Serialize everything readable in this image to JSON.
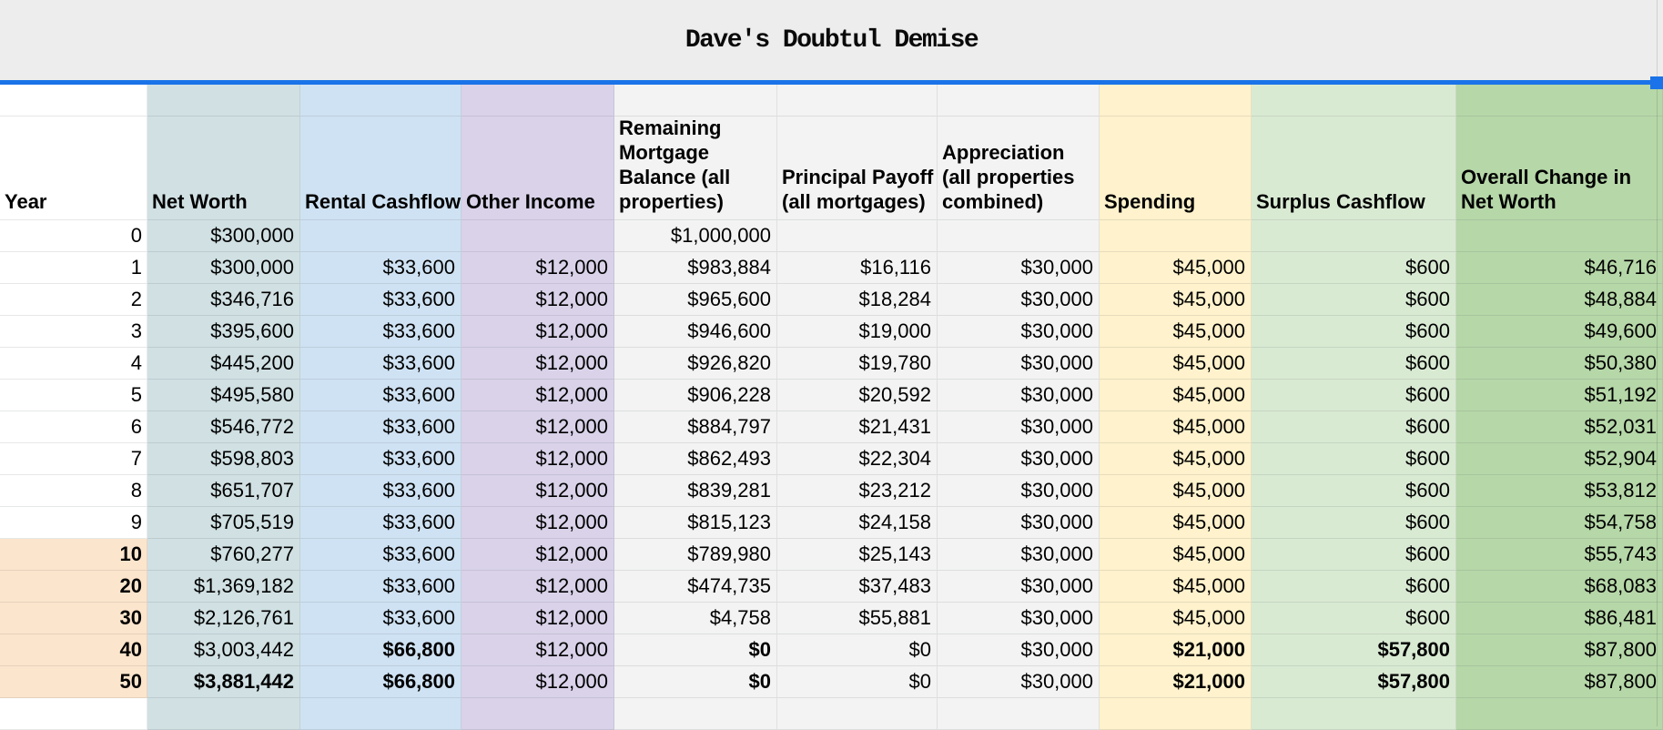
{
  "title": "Dave's Doubtul Demise",
  "colors": {
    "title_bar_bg": "#ededed",
    "selection_blue": "#1a73e8",
    "year_highlight_bg": "#fce5cd",
    "grid_bg": "#ffffff"
  },
  "columns": [
    {
      "key": "year",
      "label": "Year",
      "bg": "#ffffff"
    },
    {
      "key": "net_worth",
      "label": "Net Worth",
      "bg": "#d0e0e3"
    },
    {
      "key": "rental_cashflow",
      "label": "Rental Cashflow",
      "bg": "#cfe2f3"
    },
    {
      "key": "other_income",
      "label": "Other Income",
      "bg": "#d9d2e9"
    },
    {
      "key": "mortgage_balance",
      "label": "Remaining Mortgage Balance (all properties)",
      "bg": "#f3f3f3"
    },
    {
      "key": "principal_payoff",
      "label": "Principal Payoff (all mortgages)",
      "bg": "#f3f3f3"
    },
    {
      "key": "appreciation",
      "label": "Appreciation (all properties combined)",
      "bg": "#f3f3f3"
    },
    {
      "key": "spending",
      "label": "Spending",
      "bg": "#fff2cc"
    },
    {
      "key": "surplus_cashflow",
      "label": "Surplus Cashflow",
      "bg": "#d9ead3"
    },
    {
      "key": "overall_change",
      "label": "Overall Change in Net Worth",
      "bg": "#b6d7a8"
    }
  ],
  "rows": [
    {
      "year": "0",
      "year_bold": false,
      "year_highlight": false,
      "cells": [
        "$300,000",
        "",
        "",
        "$1,000,000",
        "",
        "",
        "",
        "",
        ""
      ],
      "bold_cells": []
    },
    {
      "year": "1",
      "year_bold": false,
      "year_highlight": false,
      "cells": [
        "$300,000",
        "$33,600",
        "$12,000",
        "$983,884",
        "$16,116",
        "$30,000",
        "$45,000",
        "$600",
        "$46,716"
      ],
      "bold_cells": []
    },
    {
      "year": "2",
      "year_bold": false,
      "year_highlight": false,
      "cells": [
        "$346,716",
        "$33,600",
        "$12,000",
        "$965,600",
        "$18,284",
        "$30,000",
        "$45,000",
        "$600",
        "$48,884"
      ],
      "bold_cells": []
    },
    {
      "year": "3",
      "year_bold": false,
      "year_highlight": false,
      "cells": [
        "$395,600",
        "$33,600",
        "$12,000",
        "$946,600",
        "$19,000",
        "$30,000",
        "$45,000",
        "$600",
        "$49,600"
      ],
      "bold_cells": []
    },
    {
      "year": "4",
      "year_bold": false,
      "year_highlight": false,
      "cells": [
        "$445,200",
        "$33,600",
        "$12,000",
        "$926,820",
        "$19,780",
        "$30,000",
        "$45,000",
        "$600",
        "$50,380"
      ],
      "bold_cells": []
    },
    {
      "year": "5",
      "year_bold": false,
      "year_highlight": false,
      "cells": [
        "$495,580",
        "$33,600",
        "$12,000",
        "$906,228",
        "$20,592",
        "$30,000",
        "$45,000",
        "$600",
        "$51,192"
      ],
      "bold_cells": []
    },
    {
      "year": "6",
      "year_bold": false,
      "year_highlight": false,
      "cells": [
        "$546,772",
        "$33,600",
        "$12,000",
        "$884,797",
        "$21,431",
        "$30,000",
        "$45,000",
        "$600",
        "$52,031"
      ],
      "bold_cells": []
    },
    {
      "year": "7",
      "year_bold": false,
      "year_highlight": false,
      "cells": [
        "$598,803",
        "$33,600",
        "$12,000",
        "$862,493",
        "$22,304",
        "$30,000",
        "$45,000",
        "$600",
        "$52,904"
      ],
      "bold_cells": []
    },
    {
      "year": "8",
      "year_bold": false,
      "year_highlight": false,
      "cells": [
        "$651,707",
        "$33,600",
        "$12,000",
        "$839,281",
        "$23,212",
        "$30,000",
        "$45,000",
        "$600",
        "$53,812"
      ],
      "bold_cells": []
    },
    {
      "year": "9",
      "year_bold": false,
      "year_highlight": false,
      "cells": [
        "$705,519",
        "$33,600",
        "$12,000",
        "$815,123",
        "$24,158",
        "$30,000",
        "$45,000",
        "$600",
        "$54,758"
      ],
      "bold_cells": []
    },
    {
      "year": "10",
      "year_bold": true,
      "year_highlight": true,
      "cells": [
        "$760,277",
        "$33,600",
        "$12,000",
        "$789,980",
        "$25,143",
        "$30,000",
        "$45,000",
        "$600",
        "$55,743"
      ],
      "bold_cells": []
    },
    {
      "year": "20",
      "year_bold": true,
      "year_highlight": true,
      "cells": [
        "$1,369,182",
        "$33,600",
        "$12,000",
        "$474,735",
        "$37,483",
        "$30,000",
        "$45,000",
        "$600",
        "$68,083"
      ],
      "bold_cells": []
    },
    {
      "year": "30",
      "year_bold": true,
      "year_highlight": true,
      "cells": [
        "$2,126,761",
        "$33,600",
        "$12,000",
        "$4,758",
        "$55,881",
        "$30,000",
        "$45,000",
        "$600",
        "$86,481"
      ],
      "bold_cells": []
    },
    {
      "year": "40",
      "year_bold": true,
      "year_highlight": true,
      "cells": [
        "$3,003,442",
        "$66,800",
        "$12,000",
        "$0",
        "$0",
        "$30,000",
        "$21,000",
        "$57,800",
        "$87,800"
      ],
      "bold_cells": [
        1,
        3,
        6,
        7
      ]
    },
    {
      "year": "50",
      "year_bold": true,
      "year_highlight": true,
      "cells": [
        "$3,881,442",
        "$66,800",
        "$12,000",
        "$0",
        "$0",
        "$30,000",
        "$21,000",
        "$57,800",
        "$87,800"
      ],
      "bold_cells": [
        0,
        1,
        3,
        6,
        7
      ]
    }
  ]
}
